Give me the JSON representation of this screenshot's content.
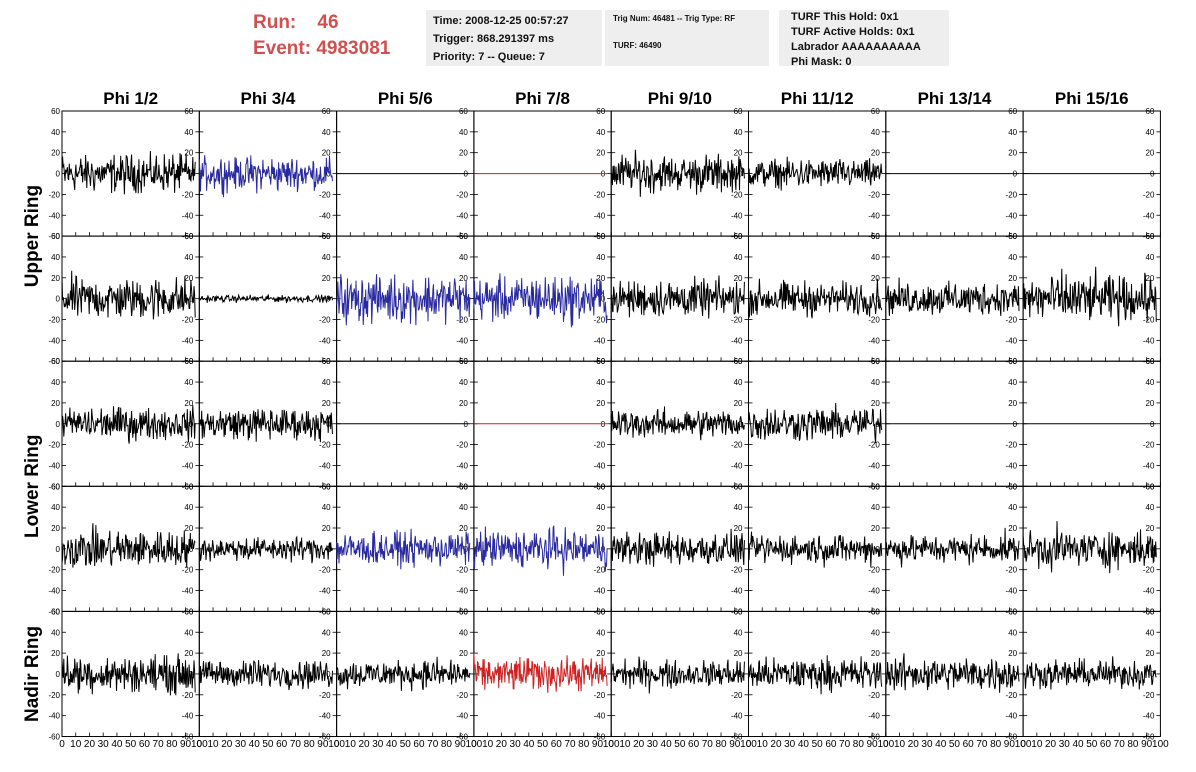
{
  "header": {
    "run_label": "Run:",
    "run_value": "46",
    "event_label": "Event:",
    "event_value": "4983081"
  },
  "info": {
    "time": "Time: 2008-12-25 00:57:27",
    "trigger": "Trigger: 868.291397 ms",
    "priority": "Priority: 7 -- Queue: 7",
    "trig_num": "Trig Num: 46481 -- Trig Type: RF",
    "turf": "TURF: 46490",
    "turf_this_hold": "TURF This Hold: 0x1",
    "turf_active_holds": "TURF Active Holds: 0x1",
    "labrador": "Labrador AAAAAAAAAA",
    "phi_mask": "Phi Mask: 0"
  },
  "chart_data": {
    "type": "line",
    "columns": [
      "Phi 1/2",
      "Phi 3/4",
      "Phi 5/6",
      "Phi 7/8",
      "Phi 9/10",
      "Phi 11/12",
      "Phi 13/14",
      "Phi 15/16"
    ],
    "ring_labels": [
      "Upper Ring",
      "Lower Ring",
      "Nadir Ring"
    ],
    "xlim": [
      0,
      100
    ],
    "ylim": [
      -60,
      60
    ],
    "x_ticks": [
      0,
      10,
      20,
      30,
      40,
      50,
      60,
      70,
      80,
      90,
      100
    ],
    "y_ticks": [
      -60,
      -40,
      -20,
      0,
      20,
      40,
      60
    ],
    "colors": {
      "black": "#000000",
      "blue": "#2a2aa0",
      "red": "#cc2222"
    },
    "rows": [
      {
        "amplitude": [
          16,
          14,
          0,
          0,
          16,
          12,
          0,
          0
        ],
        "color": [
          "black",
          "blue",
          "black",
          "red",
          "black",
          "black",
          "black",
          "black"
        ]
      },
      {
        "amplitude": [
          18,
          3,
          20,
          20,
          16,
          14,
          14,
          20
        ],
        "color": [
          "black",
          "black",
          "blue",
          "blue",
          "black",
          "black",
          "black",
          "black"
        ]
      },
      {
        "amplitude": [
          14,
          14,
          0,
          0,
          12,
          14,
          0,
          0
        ],
        "color": [
          "black",
          "black",
          "black",
          "red",
          "black",
          "black",
          "black",
          "black"
        ]
      },
      {
        "amplitude": [
          16,
          10,
          14,
          16,
          14,
          12,
          12,
          16
        ],
        "color": [
          "black",
          "black",
          "blue",
          "blue",
          "black",
          "black",
          "black",
          "black"
        ]
      },
      {
        "amplitude": [
          16,
          12,
          12,
          14,
          12,
          14,
          14,
          12
        ],
        "color": [
          "black",
          "black",
          "black",
          "red",
          "black",
          "black",
          "black",
          "black"
        ]
      }
    ]
  }
}
